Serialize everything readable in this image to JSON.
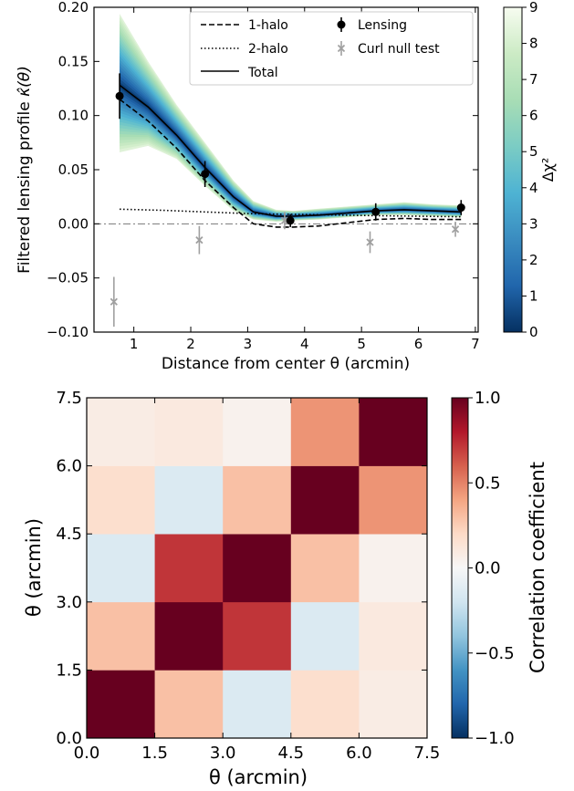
{
  "chart_data": [
    {
      "type": "line",
      "xlabel": "Distance from center θ (arcmin)",
      "ylabel_text": "Filtered lensing profile ",
      "ylabel_symbol": "κ̂(θ)",
      "xlim": [
        0.3,
        7.05
      ],
      "ylim": [
        -0.1,
        0.2
      ],
      "xticks": [
        "1",
        "2",
        "3",
        "4",
        "5",
        "6",
        "7"
      ],
      "yticks": [
        "−0.10",
        "−0.05",
        "0.00",
        "0.05",
        "0.10",
        "0.15",
        "0.20"
      ],
      "legend_placement": "top-right",
      "series": [
        {
          "name": "1-halo",
          "style": "dashed",
          "x": [
            0.75,
            1.25,
            1.75,
            2.25,
            2.75,
            3.1,
            3.5,
            3.8,
            4.25,
            4.75,
            5.25,
            5.75,
            6.25,
            6.75
          ],
          "y": [
            0.115,
            0.095,
            0.07,
            0.04,
            0.015,
            0.0,
            -0.003,
            -0.003,
            -0.002,
            0.001,
            0.004,
            0.005,
            0.004,
            0.004
          ]
        },
        {
          "name": "2-halo",
          "style": "dotted",
          "x": [
            0.75,
            1.5,
            2.25,
            3.0,
            3.5,
            3.8,
            4.5,
            5.25,
            6.0,
            6.75
          ],
          "y": [
            0.0135,
            0.0125,
            0.011,
            0.0095,
            0.009,
            0.0088,
            0.0082,
            0.0075,
            0.007,
            0.0065
          ]
        },
        {
          "name": "Total",
          "style": "solid",
          "x": [
            0.75,
            1.25,
            1.75,
            2.25,
            2.75,
            3.1,
            3.5,
            3.8,
            4.25,
            4.75,
            5.25,
            5.75,
            6.25,
            6.75
          ],
          "y": [
            0.128,
            0.108,
            0.082,
            0.052,
            0.025,
            0.011,
            0.007,
            0.007,
            0.008,
            0.01,
            0.012,
            0.013,
            0.012,
            0.011
          ]
        },
        {
          "name": "Lensing",
          "style": "points",
          "x": [
            0.75,
            2.25,
            3.75,
            5.25,
            6.75
          ],
          "y": [
            0.118,
            0.046,
            0.003,
            0.011,
            0.015
          ],
          "yerr": [
            0.021,
            0.012,
            0.006,
            0.008,
            0.007
          ]
        },
        {
          "name": "Curl null test",
          "style": "crosses",
          "x": [
            0.65,
            2.15,
            3.65,
            5.15,
            6.65
          ],
          "y": [
            -0.072,
            -0.015,
            0.003,
            -0.017,
            -0.005
          ],
          "yerr": [
            0.023,
            0.013,
            0.008,
            0.01,
            0.007
          ]
        }
      ],
      "band": {
        "x": [
          0.75,
          1.25,
          1.75,
          2.25,
          2.75,
          3.1,
          3.5,
          3.8,
          4.25,
          4.75,
          5.25,
          5.75,
          6.25,
          6.75
        ],
        "upper": [
          0.194,
          0.15,
          0.11,
          0.075,
          0.04,
          0.021,
          0.013,
          0.012,
          0.014,
          0.016,
          0.018,
          0.02,
          0.018,
          0.017
        ],
        "lower": [
          0.066,
          0.072,
          0.06,
          0.035,
          0.012,
          0.004,
          0.002,
          0.003,
          0.004,
          0.006,
          0.008,
          0.008,
          0.007,
          0.006
        ]
      },
      "colorbar": {
        "label": "Δχ²",
        "range": [
          0,
          9
        ],
        "ticks": [
          "0",
          "1",
          "2",
          "3",
          "4",
          "5",
          "6",
          "7",
          "8",
          "9"
        ],
        "colors": [
          "#053061",
          "#2166ac",
          "#3a8cc0",
          "#4eb3d3",
          "#7bccc4",
          "#a8ddb5",
          "#ccebc5",
          "#f7fcf0"
        ]
      }
    },
    {
      "type": "heatmap",
      "xlabel": "θ (arcmin)",
      "ylabel": "θ (arcmin)",
      "xlim": [
        0,
        7.5
      ],
      "ylim": [
        0,
        7.5
      ],
      "xticks": [
        "0.0",
        "1.5",
        "3.0",
        "4.5",
        "6.0",
        "7.5"
      ],
      "yticks": [
        "0.0",
        "1.5",
        "3.0",
        "4.5",
        "6.0",
        "7.5"
      ],
      "rows_bottom_to_top": [
        [
          1.0,
          0.3,
          -0.15,
          0.17,
          0.08
        ],
        [
          0.3,
          1.0,
          0.72,
          -0.15,
          0.1
        ],
        [
          -0.15,
          0.72,
          1.0,
          0.3,
          0.04
        ],
        [
          0.17,
          -0.15,
          0.3,
          1.0,
          0.45
        ],
        [
          0.08,
          0.1,
          0.04,
          0.45,
          1.0
        ]
      ],
      "colorbar": {
        "label": "Correlation coefficient",
        "range": [
          -1,
          1
        ],
        "ticks": [
          "−1.0",
          "−0.5",
          "0.0",
          "0.5",
          "1.0"
        ],
        "colors": [
          "#053061",
          "#2166ac",
          "#4393c3",
          "#92c5de",
          "#d1e5f0",
          "#f7f7f7",
          "#fddbc7",
          "#f4a582",
          "#d6604d",
          "#b2182b",
          "#67001f"
        ]
      }
    }
  ]
}
